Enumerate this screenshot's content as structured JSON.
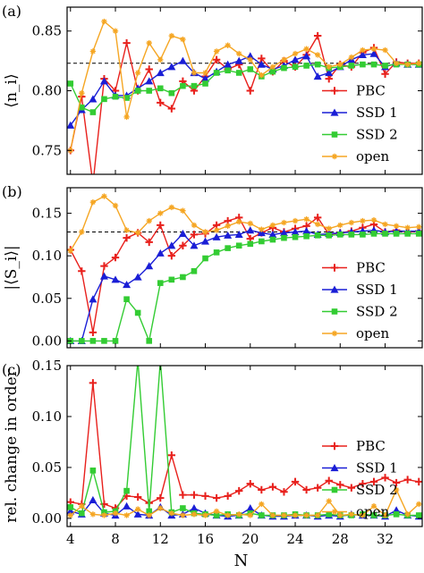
{
  "chart_data": [
    {
      "type": "line",
      "panel_label": "(a)",
      "ylabel": "⟨n_i⟩",
      "ylim": [
        0.73,
        0.87
      ],
      "yticks": [
        0.75,
        0.8,
        0.85
      ],
      "ytick_labels": [
        "0.75",
        "0.80",
        "0.85"
      ],
      "reference_line": 0.823,
      "legend_position": "right",
      "series": [
        {
          "name": "PBC",
          "color": "#e8201c",
          "marker": "plus",
          "x": [
            4,
            5,
            6,
            7,
            8,
            9,
            10,
            11,
            12,
            13,
            14,
            15,
            16,
            17,
            18,
            19,
            20,
            21,
            22,
            23,
            24,
            25,
            26,
            27,
            28,
            29,
            30,
            31,
            32,
            33,
            34,
            35
          ],
          "values": [
            0.75,
            0.795,
            0.722,
            0.81,
            0.8,
            0.84,
            0.8,
            0.818,
            0.79,
            0.785,
            0.808,
            0.8,
            0.812,
            0.826,
            0.818,
            0.822,
            0.8,
            0.827,
            0.816,
            0.825,
            0.82,
            0.83,
            0.846,
            0.81,
            0.822,
            0.82,
            0.832,
            0.836,
            0.814,
            0.824,
            0.823,
            0.823
          ]
        },
        {
          "name": "SSD 1",
          "color": "#1a1ed6",
          "marker": "triangle",
          "x": [
            4,
            5,
            6,
            7,
            8,
            9,
            10,
            11,
            12,
            13,
            14,
            15,
            16,
            17,
            18,
            19,
            20,
            21,
            22,
            23,
            24,
            25,
            26,
            27,
            28,
            29,
            30,
            31,
            32,
            33,
            34,
            35
          ],
          "values": [
            0.771,
            0.784,
            0.793,
            0.808,
            0.796,
            0.796,
            0.802,
            0.808,
            0.815,
            0.82,
            0.825,
            0.815,
            0.81,
            0.816,
            0.822,
            0.825,
            0.829,
            0.822,
            0.818,
            0.821,
            0.826,
            0.829,
            0.812,
            0.815,
            0.82,
            0.826,
            0.83,
            0.831,
            0.82,
            0.823,
            0.822,
            0.822
          ]
        },
        {
          "name": "SSD 2",
          "color": "#33cc33",
          "marker": "square",
          "x": [
            4,
            5,
            6,
            7,
            8,
            9,
            10,
            11,
            12,
            13,
            14,
            15,
            16,
            17,
            18,
            19,
            20,
            21,
            22,
            23,
            24,
            25,
            26,
            27,
            28,
            29,
            30,
            31,
            32,
            33,
            34,
            35
          ],
          "values": [
            0.806,
            0.786,
            0.782,
            0.793,
            0.795,
            0.794,
            0.8,
            0.8,
            0.802,
            0.798,
            0.804,
            0.804,
            0.806,
            0.815,
            0.817,
            0.815,
            0.818,
            0.812,
            0.816,
            0.819,
            0.82,
            0.821,
            0.822,
            0.819,
            0.82,
            0.821,
            0.822,
            0.822,
            0.821,
            0.822,
            0.822,
            0.822
          ]
        },
        {
          "name": "open",
          "color": "#f5a623",
          "marker": "star",
          "x": [
            4,
            5,
            6,
            7,
            8,
            9,
            10,
            11,
            12,
            13,
            14,
            15,
            16,
            17,
            18,
            19,
            20,
            21,
            22,
            23,
            24,
            25,
            26,
            27,
            28,
            29,
            30,
            31,
            32,
            33,
            34,
            35
          ],
          "values": [
            0.75,
            0.798,
            0.833,
            0.858,
            0.85,
            0.778,
            0.815,
            0.84,
            0.826,
            0.846,
            0.843,
            0.815,
            0.815,
            0.833,
            0.838,
            0.831,
            0.826,
            0.813,
            0.82,
            0.826,
            0.831,
            0.835,
            0.83,
            0.82,
            0.822,
            0.828,
            0.834,
            0.835,
            0.834,
            0.823,
            0.822,
            0.823
          ]
        }
      ]
    },
    {
      "type": "line",
      "panel_label": "(b)",
      "ylabel": "|⟨S_i⟩|",
      "ylim": [
        -0.008,
        0.18
      ],
      "yticks": [
        0.0,
        0.05,
        0.1,
        0.15
      ],
      "ytick_labels": [
        "0.00",
        "0.05",
        "0.10",
        "0.15"
      ],
      "reference_line": 0.128,
      "legend_position": "right",
      "series": [
        {
          "name": "PBC",
          "color": "#e8201c",
          "marker": "plus",
          "x": [
            4,
            5,
            6,
            7,
            8,
            9,
            10,
            11,
            12,
            13,
            14,
            15,
            16,
            17,
            18,
            19,
            20,
            21,
            22,
            23,
            24,
            25,
            26,
            27,
            28,
            29,
            30,
            31,
            32,
            33,
            34,
            35
          ],
          "values": [
            0.107,
            0.082,
            0.01,
            0.088,
            0.098,
            0.121,
            0.127,
            0.116,
            0.136,
            0.1,
            0.112,
            0.125,
            0.126,
            0.136,
            0.141,
            0.145,
            0.12,
            0.127,
            0.133,
            0.128,
            0.132,
            0.135,
            0.145,
            0.125,
            0.127,
            0.129,
            0.133,
            0.137,
            0.128,
            0.13,
            0.128,
            0.129
          ]
        },
        {
          "name": "SSD 1",
          "color": "#1a1ed6",
          "marker": "triangle",
          "x": [
            4,
            5,
            6,
            7,
            8,
            9,
            10,
            11,
            12,
            13,
            14,
            15,
            16,
            17,
            18,
            19,
            20,
            21,
            22,
            23,
            24,
            25,
            26,
            27,
            28,
            29,
            30,
            31,
            32,
            33,
            34,
            35
          ],
          "values": [
            0.0,
            0.0,
            0.049,
            0.076,
            0.072,
            0.066,
            0.075,
            0.088,
            0.103,
            0.112,
            0.126,
            0.112,
            0.117,
            0.122,
            0.124,
            0.125,
            0.13,
            0.127,
            0.125,
            0.127,
            0.128,
            0.129,
            0.125,
            0.126,
            0.127,
            0.128,
            0.129,
            0.13,
            0.128,
            0.129,
            0.129,
            0.129
          ]
        },
        {
          "name": "SSD 2",
          "color": "#33cc33",
          "marker": "square",
          "x": [
            4,
            5,
            6,
            7,
            8,
            9,
            10,
            11,
            12,
            13,
            14,
            15,
            16,
            17,
            18,
            19,
            20,
            21,
            22,
            23,
            24,
            25,
            26,
            27,
            28,
            29,
            30,
            31,
            32,
            33,
            34,
            35
          ],
          "values": [
            0.0,
            0.0,
            0.0,
            0.0,
            0.0,
            0.049,
            0.033,
            0.0,
            0.068,
            0.072,
            0.075,
            0.082,
            0.097,
            0.104,
            0.109,
            0.112,
            0.114,
            0.117,
            0.119,
            0.121,
            0.122,
            0.123,
            0.124,
            0.124,
            0.125,
            0.125,
            0.125,
            0.126,
            0.126,
            0.126,
            0.126,
            0.126
          ]
        },
        {
          "name": "open",
          "color": "#f5a623",
          "marker": "star",
          "x": [
            4,
            5,
            6,
            7,
            8,
            9,
            10,
            11,
            12,
            13,
            14,
            15,
            16,
            17,
            18,
            19,
            20,
            21,
            22,
            23,
            24,
            25,
            26,
            27,
            28,
            29,
            30,
            31,
            32,
            33,
            34,
            35
          ],
          "values": [
            0.106,
            0.128,
            0.163,
            0.17,
            0.159,
            0.13,
            0.127,
            0.141,
            0.15,
            0.157,
            0.153,
            0.136,
            0.128,
            0.13,
            0.135,
            0.14,
            0.138,
            0.131,
            0.136,
            0.139,
            0.141,
            0.143,
            0.137,
            0.132,
            0.136,
            0.139,
            0.141,
            0.142,
            0.137,
            0.135,
            0.133,
            0.134
          ]
        }
      ]
    },
    {
      "type": "line",
      "panel_label": "(c)",
      "ylabel": "rel. change in order",
      "xlabel": "N",
      "ylim": [
        -0.008,
        0.15
      ],
      "yticks": [
        0.0,
        0.05,
        0.1,
        0.15
      ],
      "ytick_labels": [
        "0.00",
        "0.05",
        "0.10",
        "0.15"
      ],
      "xticks": [
        4,
        8,
        12,
        16,
        20,
        24,
        28,
        32
      ],
      "xtick_labels": [
        "4",
        "8",
        "12",
        "16",
        "20",
        "24",
        "28",
        "32"
      ],
      "xlim": [
        3.7,
        35.3
      ],
      "legend_position": "right",
      "series": [
        {
          "name": "PBC",
          "color": "#e8201c",
          "marker": "plus",
          "x": [
            4,
            5,
            6,
            7,
            8,
            9,
            10,
            11,
            12,
            13,
            14,
            15,
            16,
            17,
            18,
            19,
            20,
            21,
            22,
            23,
            24,
            25,
            26,
            27,
            28,
            29,
            30,
            31,
            32,
            33,
            34,
            35
          ],
          "values": [
            0.016,
            0.014,
            0.133,
            0.014,
            0.01,
            0.022,
            0.021,
            0.015,
            0.02,
            0.062,
            0.023,
            0.023,
            0.022,
            0.02,
            0.022,
            0.027,
            0.034,
            0.028,
            0.031,
            0.026,
            0.036,
            0.028,
            0.03,
            0.037,
            0.033,
            0.03,
            0.034,
            0.036,
            0.04,
            0.035,
            0.038,
            0.036
          ]
        },
        {
          "name": "SSD 1",
          "color": "#1a1ed6",
          "marker": "triangle",
          "x": [
            4,
            5,
            6,
            7,
            8,
            9,
            10,
            11,
            12,
            13,
            14,
            15,
            16,
            17,
            18,
            19,
            20,
            21,
            22,
            23,
            24,
            25,
            26,
            27,
            28,
            29,
            30,
            31,
            32,
            33,
            34,
            35
          ],
          "values": [
            0.007,
            0.004,
            0.018,
            0.005,
            0.003,
            0.012,
            0.004,
            0.003,
            0.011,
            0.003,
            0.004,
            0.01,
            0.005,
            0.003,
            0.002,
            0.003,
            0.01,
            0.003,
            0.002,
            0.002,
            0.003,
            0.003,
            0.002,
            0.003,
            0.002,
            0.004,
            0.003,
            0.003,
            0.002,
            0.008,
            0.003,
            0.002
          ]
        },
        {
          "name": "SSD 2",
          "color": "#33cc33",
          "marker": "square",
          "x": [
            4,
            5,
            6,
            7,
            8,
            9,
            10,
            11,
            12,
            13,
            14,
            15,
            16,
            17,
            18,
            19,
            20,
            21,
            22,
            23,
            24,
            25,
            26,
            27,
            28,
            29,
            30,
            31,
            32,
            33,
            34,
            35
          ],
          "values": [
            0.011,
            0.005,
            0.047,
            0.006,
            0.007,
            0.027,
            0.155,
            0.007,
            0.155,
            0.006,
            0.01,
            0.005,
            0.004,
            0.003,
            0.004,
            0.003,
            0.005,
            0.003,
            0.003,
            0.003,
            0.004,
            0.003,
            0.003,
            0.004,
            0.003,
            0.003,
            0.004,
            0.003,
            0.003,
            0.004,
            0.003,
            0.003
          ]
        },
        {
          "name": "open",
          "color": "#f5a623",
          "marker": "star",
          "x": [
            4,
            5,
            6,
            7,
            8,
            9,
            10,
            11,
            12,
            13,
            14,
            15,
            16,
            17,
            18,
            19,
            20,
            21,
            22,
            23,
            24,
            25,
            26,
            27,
            28,
            29,
            30,
            31,
            32,
            33,
            34,
            35
          ],
          "values": [
            0.003,
            0.012,
            0.004,
            0.003,
            0.005,
            0.003,
            0.009,
            0.003,
            0.01,
            0.005,
            0.003,
            0.004,
            0.003,
            0.007,
            0.003,
            0.004,
            0.003,
            0.014,
            0.003,
            0.003,
            0.003,
            0.003,
            0.003,
            0.017,
            0.003,
            0.004,
            0.003,
            0.012,
            0.003,
            0.028,
            0.004,
            0.014
          ]
        }
      ]
    }
  ]
}
